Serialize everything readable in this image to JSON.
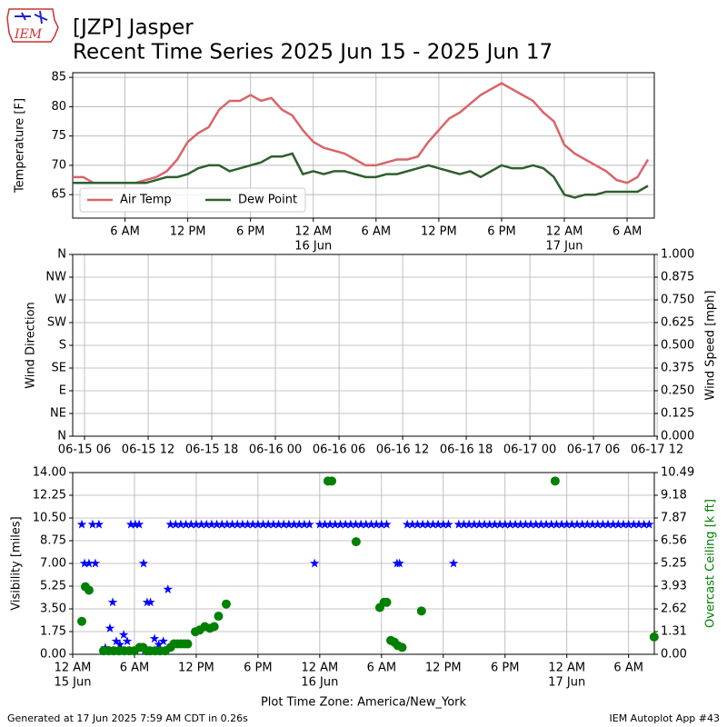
{
  "logo": "IEM",
  "footer": {
    "left": "Generated at 17 Jun 2025 7:59 AM CDT in 0.26s",
    "right": "IEM Autoplot App #43"
  },
  "chart_data": [
    {
      "type": "line",
      "title": "[JZP] Jasper",
      "subtitle": "Recent Time Series 2025 Jun 15 - 2025 Jun 17",
      "ylabel": "Temperature [F]",
      "grid": true,
      "legend": "lower left",
      "xlim": [
        "2025-06-15T01:00",
        "2025-06-17T08:36"
      ],
      "ylim": [
        61,
        85.8
      ],
      "yticks": [
        65,
        70,
        75,
        80,
        85
      ],
      "xticks": [
        {
          "value": "2025-06-15T06:00",
          "label": "6 AM"
        },
        {
          "value": "2025-06-15T12:00",
          "label": "12 PM"
        },
        {
          "value": "2025-06-15T18:00",
          "label": "6 PM"
        },
        {
          "value": "2025-06-16T00:00",
          "label": "12 AM"
        },
        {
          "value": "2025-06-16T06:00",
          "label": "6 AM"
        },
        {
          "value": "2025-06-16T12:00",
          "label": "12 PM"
        },
        {
          "value": "2025-06-16T18:00",
          "label": "6 PM"
        },
        {
          "value": "2025-06-17T00:00",
          "label": "12 AM"
        },
        {
          "value": "2025-06-17T06:00",
          "label": "6 AM"
        }
      ],
      "xtick_dates": [
        {
          "value": "2025-06-16T00:00",
          "label": "16 Jun"
        },
        {
          "value": "2025-06-17T00:00",
          "label": "17 Jun"
        }
      ],
      "x": [
        "2025-06-15T01:00",
        "2025-06-15T02:00",
        "2025-06-15T03:00",
        "2025-06-15T04:00",
        "2025-06-15T05:00",
        "2025-06-15T06:00",
        "2025-06-15T07:00",
        "2025-06-15T08:00",
        "2025-06-15T09:00",
        "2025-06-15T10:00",
        "2025-06-15T11:00",
        "2025-06-15T12:00",
        "2025-06-15T13:00",
        "2025-06-15T14:00",
        "2025-06-15T15:00",
        "2025-06-15T16:00",
        "2025-06-15T17:00",
        "2025-06-15T18:00",
        "2025-06-15T19:00",
        "2025-06-15T20:00",
        "2025-06-15T21:00",
        "2025-06-15T22:00",
        "2025-06-15T23:00",
        "2025-06-16T00:00",
        "2025-06-16T01:00",
        "2025-06-16T02:00",
        "2025-06-16T03:00",
        "2025-06-16T04:00",
        "2025-06-16T05:00",
        "2025-06-16T06:00",
        "2025-06-16T07:00",
        "2025-06-16T08:00",
        "2025-06-16T09:00",
        "2025-06-16T10:00",
        "2025-06-16T11:00",
        "2025-06-16T12:00",
        "2025-06-16T13:00",
        "2025-06-16T14:00",
        "2025-06-16T15:00",
        "2025-06-16T16:00",
        "2025-06-16T17:00",
        "2025-06-16T18:00",
        "2025-06-16T19:00",
        "2025-06-16T20:00",
        "2025-06-16T21:00",
        "2025-06-16T22:00",
        "2025-06-16T23:00",
        "2025-06-17T00:00",
        "2025-06-17T01:00",
        "2025-06-17T02:00",
        "2025-06-17T03:00",
        "2025-06-17T04:00",
        "2025-06-17T05:00",
        "2025-06-17T06:00",
        "2025-06-17T07:00",
        "2025-06-17T08:00"
      ],
      "series": [
        {
          "name": "Air Temp",
          "color": "#d9646a",
          "values": [
            68,
            68,
            67,
            67,
            67,
            67,
            67,
            67.5,
            68,
            69,
            71,
            74,
            75.5,
            76.5,
            79.5,
            81,
            81,
            82,
            81,
            81.5,
            79.5,
            78.5,
            76,
            74,
            73,
            72.5,
            72,
            71,
            70,
            70,
            70.5,
            71,
            71,
            71.5,
            74,
            76,
            78,
            79,
            80.5,
            82,
            83,
            84,
            83,
            82,
            81,
            79,
            77.5,
            73.5,
            72,
            71,
            70,
            69,
            67.5,
            67,
            68,
            71
          ]
        },
        {
          "name": "Dew Point",
          "color": "#2f5f2f",
          "values": [
            67,
            67,
            67,
            67,
            67,
            67,
            67,
            67,
            67.5,
            68,
            68,
            68.5,
            69.5,
            70,
            70,
            69,
            69.5,
            70,
            70.5,
            71.5,
            71.5,
            72,
            68.5,
            69,
            68.5,
            69,
            69,
            68.5,
            68,
            68,
            68.5,
            68.5,
            69,
            69.5,
            70,
            69.5,
            69,
            68.5,
            69,
            68,
            69,
            70,
            69.5,
            69.5,
            70,
            69.5,
            68,
            65,
            64.5,
            65,
            65,
            65.5,
            65.5,
            65.5,
            65.5,
            66.5
          ]
        }
      ]
    },
    {
      "type": "line",
      "ylabel": "Wind Direction",
      "y2label": "Wind Speed [mph]",
      "grid": true,
      "xlim": [
        "2025-06-15T04:53",
        "2025-06-17T11:44"
      ],
      "ylim": [
        0,
        360
      ],
      "y2lim": [
        0,
        1
      ],
      "yticks": [
        {
          "value": 0,
          "label": "N"
        },
        {
          "value": 45,
          "label": "NE"
        },
        {
          "value": 90,
          "label": "E"
        },
        {
          "value": 135,
          "label": "SE"
        },
        {
          "value": 180,
          "label": "S"
        },
        {
          "value": 225,
          "label": "SW"
        },
        {
          "value": 270,
          "label": "W"
        },
        {
          "value": 315,
          "label": "NW"
        },
        {
          "value": 360,
          "label": "N"
        }
      ],
      "y2ticks": [
        {
          "value": 0,
          "label": "0.000"
        },
        0.125,
        {
          "value": 0.25,
          "label": "0.250"
        },
        0.375,
        {
          "value": 0.5,
          "label": "0.500"
        },
        0.625,
        {
          "value": 0.75,
          "label": "0.750"
        },
        0.875,
        {
          "value": 1,
          "label": "1.000"
        }
      ],
      "xticks": [
        {
          "value": "2025-06-15T06:00",
          "label": "06-15 06"
        },
        {
          "value": "2025-06-15T12:00",
          "label": "06-15 12"
        },
        {
          "value": "2025-06-15T18:00",
          "label": "06-15 18"
        },
        {
          "value": "2025-06-16T00:00",
          "label": "06-16 00"
        },
        {
          "value": "2025-06-16T06:00",
          "label": "06-16 06"
        },
        {
          "value": "2025-06-16T12:00",
          "label": "06-16 12"
        },
        {
          "value": "2025-06-16T18:00",
          "label": "06-16 18"
        },
        {
          "value": "2025-06-17T00:00",
          "label": "06-17 00"
        },
        {
          "value": "2025-06-17T06:00",
          "label": "06-17 06"
        },
        {
          "value": "2025-06-17T12:00",
          "label": "06-17 12"
        }
      ],
      "series": []
    },
    {
      "type": "scatter",
      "ylabel": "Visibility [miles]",
      "y2label": "Overcast Ceiling [k ft]",
      "y2label_color": "#008000",
      "grid": true,
      "xlabel": "Plot Time Zone: America/New_York",
      "xlim": [
        "2025-06-15T00:00",
        "2025-06-17T08:30"
      ],
      "ylim": [
        0,
        14
      ],
      "y2lim": [
        0,
        10.49
      ],
      "yticks": [
        {
          "value": 0,
          "label": "0.00"
        },
        1.75,
        {
          "value": 3.5,
          "label": "3.50"
        },
        5.25,
        {
          "value": 7,
          "label": "7.00"
        },
        8.75,
        {
          "value": 10.5,
          "label": "10.50"
        },
        12.25,
        {
          "value": 14,
          "label": "14.00"
        }
      ],
      "y2ticks": [
        {
          "value": 0,
          "label": "0.00"
        },
        1.31,
        2.62,
        3.93,
        5.25,
        6.56,
        7.87,
        9.18,
        10.49
      ],
      "xticks": [
        {
          "value": "2025-06-15T00:00",
          "label": "12 AM"
        },
        {
          "value": "2025-06-15T06:00",
          "label": "6 AM"
        },
        {
          "value": "2025-06-15T12:00",
          "label": "12 PM"
        },
        {
          "value": "2025-06-15T18:00",
          "label": "6 PM"
        },
        {
          "value": "2025-06-16T00:00",
          "label": "12 AM"
        },
        {
          "value": "2025-06-16T06:00",
          "label": "6 AM"
        },
        {
          "value": "2025-06-16T12:00",
          "label": "12 PM"
        },
        {
          "value": "2025-06-16T18:00",
          "label": "6 PM"
        },
        {
          "value": "2025-06-17T00:00",
          "label": "12 AM"
        },
        {
          "value": "2025-06-17T06:00",
          "label": "6 AM"
        }
      ],
      "xtick_dates": [
        {
          "value": "2025-06-15T00:00",
          "label": "15 Jun"
        },
        {
          "value": "2025-06-16T00:00",
          "label": "16 Jun"
        },
        {
          "value": "2025-06-17T00:00",
          "label": "17 Jun"
        }
      ],
      "series": [
        {
          "color": "#0000ff",
          "marker": "star",
          "x": [
            "2025-06-15T00:53",
            "2025-06-15T01:09",
            "2025-06-15T01:35",
            "2025-06-15T01:56",
            "2025-06-15T02:12",
            "2025-06-15T02:33",
            "2025-06-15T03:00",
            "2025-06-15T03:10",
            "2025-06-15T03:37",
            "2025-06-15T03:53",
            "2025-06-15T04:00",
            "2025-06-15T04:14",
            "2025-06-15T04:35",
            "2025-06-15T04:57",
            "2025-06-15T05:00",
            "2025-06-15T05:18",
            "2025-06-15T05:39",
            "2025-06-15T06:00",
            "2025-06-15T06:05",
            "2025-06-15T06:27",
            "2025-06-15T06:53",
            "2025-06-15T07:00",
            "2025-06-15T07:14",
            "2025-06-15T07:33",
            "2025-06-15T07:57",
            "2025-06-15T08:00",
            "2025-06-15T08:22",
            "2025-06-15T08:48",
            "2025-06-15T09:00",
            "2025-06-15T09:15",
            "2025-06-15T09:30",
            "2025-06-15T10:00",
            "2025-06-15T10:30",
            "2025-06-15T11:00",
            "2025-06-15T11:30",
            "2025-06-15T12:00",
            "2025-06-15T12:30",
            "2025-06-15T13:00",
            "2025-06-15T13:30",
            "2025-06-15T14:00",
            "2025-06-15T14:30",
            "2025-06-15T15:00",
            "2025-06-15T15:30",
            "2025-06-15T16:00",
            "2025-06-15T16:30",
            "2025-06-15T17:00",
            "2025-06-15T17:30",
            "2025-06-15T18:00",
            "2025-06-15T18:30",
            "2025-06-15T19:00",
            "2025-06-15T19:30",
            "2025-06-15T20:00",
            "2025-06-15T20:30",
            "2025-06-15T21:00",
            "2025-06-15T21:30",
            "2025-06-15T22:00",
            "2025-06-15T22:30",
            "2025-06-15T23:00",
            "2025-06-15T23:30",
            "2025-06-16T00:00",
            "2025-06-16T00:30",
            "2025-06-16T01:00",
            "2025-06-16T01:30",
            "2025-06-16T02:00",
            "2025-06-16T02:30",
            "2025-06-16T03:00",
            "2025-06-16T03:30",
            "2025-06-16T04:00",
            "2025-06-16T04:30",
            "2025-06-16T05:00",
            "2025-06-16T05:30",
            "2025-06-16T06:00",
            "2025-06-16T06:30",
            "2025-06-16T07:30",
            "2025-06-16T07:45",
            "2025-06-16T08:30",
            "2025-06-16T09:00",
            "2025-06-16T09:30",
            "2025-06-16T10:00",
            "2025-06-16T10:30",
            "2025-06-16T11:00",
            "2025-06-16T11:30",
            "2025-06-16T12:00",
            "2025-06-16T12:30",
            "2025-06-16T13:00",
            "2025-06-16T13:30",
            "2025-06-16T14:00",
            "2025-06-16T14:30",
            "2025-06-16T15:00",
            "2025-06-16T15:30",
            "2025-06-16T16:00",
            "2025-06-16T16:30",
            "2025-06-16T17:00",
            "2025-06-16T17:30",
            "2025-06-16T18:00",
            "2025-06-16T18:30",
            "2025-06-16T19:00",
            "2025-06-16T19:30",
            "2025-06-16T20:00",
            "2025-06-16T20:30",
            "2025-06-16T21:00",
            "2025-06-16T21:30",
            "2025-06-16T22:00",
            "2025-06-16T22:30",
            "2025-06-16T23:00",
            "2025-06-16T23:30",
            "2025-06-17T00:00",
            "2025-06-17T00:30",
            "2025-06-17T01:00",
            "2025-06-17T01:30",
            "2025-06-17T02:00",
            "2025-06-17T02:30",
            "2025-06-17T03:00",
            "2025-06-17T03:30",
            "2025-06-17T04:00",
            "2025-06-17T04:30",
            "2025-06-17T05:00",
            "2025-06-17T05:30",
            "2025-06-17T06:00",
            "2025-06-17T06:30",
            "2025-06-17T07:00",
            "2025-06-17T07:30",
            "2025-06-17T08:00"
          ],
          "values": [
            10,
            7,
            7,
            10,
            7,
            10,
            0.25,
            0.5,
            2,
            4,
            0.25,
            1,
            0.75,
            1.5,
            0.25,
            1,
            10,
            0.25,
            10,
            10,
            7,
            0.25,
            4,
            4,
            1.2,
            0.25,
            0.75,
            1,
            0.25,
            5,
            10,
            10,
            10,
            10,
            10,
            10,
            10,
            10,
            10,
            10,
            10,
            10,
            10,
            10,
            10,
            10,
            10,
            10,
            10,
            10,
            10,
            10,
            10,
            10,
            10,
            10,
            10,
            10,
            7,
            10,
            10,
            10,
            10,
            10,
            10,
            10,
            10,
            10,
            10,
            10,
            10,
            10,
            10,
            7,
            7,
            10,
            10,
            10,
            10,
            10,
            10,
            10,
            10,
            10,
            7,
            10,
            10,
            10,
            10,
            10,
            10,
            10,
            10,
            10,
            10,
            10,
            10,
            10,
            10,
            10,
            10,
            10,
            10,
            10,
            10,
            10,
            10,
            10,
            10,
            10,
            10,
            10,
            10,
            10,
            10,
            10,
            10,
            10,
            10,
            10,
            10,
            10,
            10
          ]
        },
        {
          "color": "#008000",
          "marker": "circle",
          "axis": "y2",
          "x": [
            "2025-06-15T00:53",
            "2025-06-15T01:14",
            "2025-06-15T01:35",
            "2025-06-15T03:00",
            "2025-06-15T03:30",
            "2025-06-15T04:00",
            "2025-06-15T04:30",
            "2025-06-15T05:00",
            "2025-06-15T05:30",
            "2025-06-15T06:00",
            "2025-06-15T06:30",
            "2025-06-15T06:50",
            "2025-06-15T07:10",
            "2025-06-15T07:30",
            "2025-06-15T08:00",
            "2025-06-15T08:30",
            "2025-06-15T09:00",
            "2025-06-15T09:30",
            "2025-06-15T09:50",
            "2025-06-15T10:10",
            "2025-06-15T10:30",
            "2025-06-15T10:50",
            "2025-06-15T11:10",
            "2025-06-15T11:55",
            "2025-06-15T12:20",
            "2025-06-15T12:50",
            "2025-06-15T13:20",
            "2025-06-15T13:45",
            "2025-06-15T14:10",
            "2025-06-15T14:55",
            "2025-06-16T00:48",
            "2025-06-16T01:10",
            "2025-06-16T03:32",
            "2025-06-16T05:50",
            "2025-06-16T06:15",
            "2025-06-16T06:30",
            "2025-06-16T06:54",
            "2025-06-16T07:15",
            "2025-06-16T07:35",
            "2025-06-16T08:00",
            "2025-06-16T09:53",
            "2025-06-16T22:52",
            "2025-06-17T08:29"
          ],
          "values": [
            1.9,
            3.9,
            3.7,
            0.2,
            0.2,
            0.2,
            0.2,
            0.2,
            0.2,
            0.2,
            0.4,
            0.4,
            0.2,
            0.2,
            0.2,
            0.2,
            0.2,
            0.4,
            0.6,
            0.6,
            0.6,
            0.6,
            0.6,
            1.3,
            1.4,
            1.6,
            1.5,
            1.6,
            2.2,
            2.9,
            10,
            10,
            6.5,
            2.7,
            3,
            3,
            0.8,
            0.7,
            0.5,
            0.4,
            2.5,
            10,
            1
          ]
        }
      ]
    }
  ]
}
